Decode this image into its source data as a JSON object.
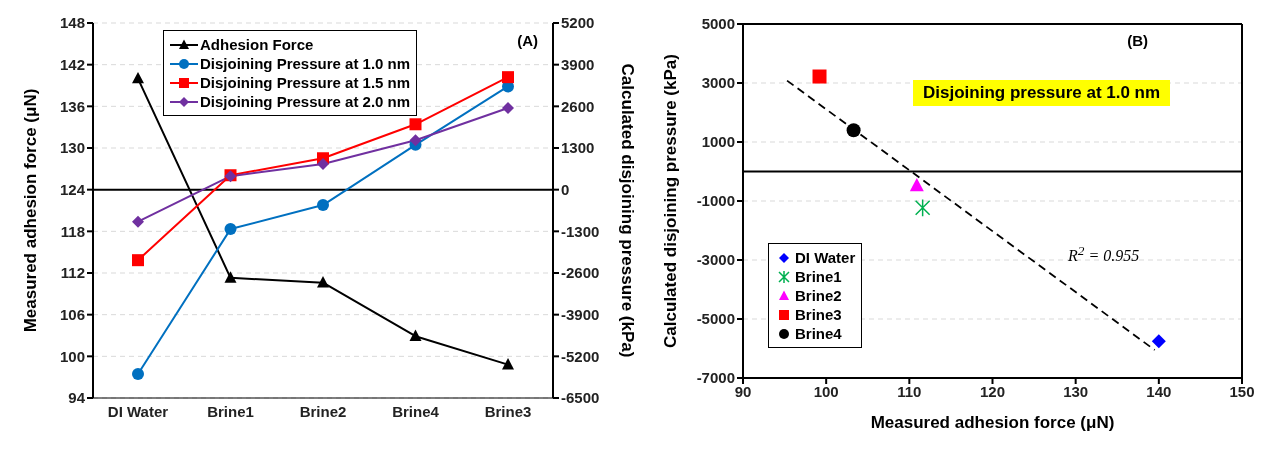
{
  "chart_data": [
    {
      "type": "line",
      "categories": [
        "DI Water",
        "Brine1",
        "Brine2",
        "Brine4",
        "Brine3"
      ],
      "ylabel": "Measured adhesion force (μN)",
      "y2label": "Calculated disjoining pressure (kPa)",
      "ylim": [
        94,
        148
      ],
      "yticks": [
        94,
        100,
        106,
        112,
        118,
        124,
        130,
        136,
        142,
        148
      ],
      "y2lim": [
        -6500,
        5200
      ],
      "y2ticks": [
        -6500,
        -5200,
        -3900,
        -2600,
        -1300,
        0,
        1300,
        2600,
        3900,
        5200
      ],
      "grid": "y",
      "legend": "top",
      "ref_lines": [
        {
          "axis": "y2",
          "value": 0,
          "color": "#000000"
        }
      ],
      "annotations": [
        "(A)"
      ],
      "series": [
        {
          "name": "Adhesion Force",
          "color": "#000000",
          "marker": "triangle",
          "values": [
            140,
            111.3,
            110.6,
            102.9,
            98.8
          ]
        },
        {
          "name": "Disjoining Pressure at 1.0 nm",
          "color": "#0070c0",
          "marker": "circle",
          "axis": "y2",
          "values": [
            -5750,
            -1230,
            -480,
            1400,
            3220
          ]
        },
        {
          "name": "Disjoining Pressure at 1.5 nm",
          "color": "#ff0000",
          "marker": "square",
          "axis": "y2",
          "values": [
            -2200,
            450,
            980,
            2040,
            3510
          ]
        },
        {
          "name": "Disjoining Pressure at 2.0 nm",
          "color": "#7030a0",
          "marker": "diamond",
          "axis": "y2",
          "values": [
            -1000,
            420,
            800,
            1540,
            2550
          ]
        }
      ]
    },
    {
      "type": "scatter",
      "xlabel": "Measured adhesion force (μN)",
      "ylabel": "Calculated disjoining pressure (kPa)",
      "xlim": [
        90,
        150
      ],
      "xticks": [
        90,
        100,
        110,
        120,
        130,
        140,
        150
      ],
      "ylim": [
        -7000,
        5000
      ],
      "yticks": [
        -7000,
        -5000,
        -3000,
        -1000,
        1000,
        3000,
        5000
      ],
      "grid": "y",
      "legend": "bottom left",
      "ref_lines": [
        {
          "axis": "y",
          "value": 0,
          "color": "#000000"
        }
      ],
      "annotations": [
        "(B)",
        "Disjoining pressure at 1.0 nm",
        "R$^{2}$ = 0.955"
      ],
      "series": [
        {
          "name": "DI Water",
          "color": "#0000ff",
          "marker": "diamond",
          "x": [
            140.0
          ],
          "values": [
            -5750
          ]
        },
        {
          "name": "Brine1",
          "color": "#00b050",
          "marker": "cross",
          "x": [
            111.6
          ],
          "values": [
            -1230
          ]
        },
        {
          "name": "Brine2",
          "color": "#ff00ff",
          "marker": "triangle",
          "x": [
            110.9
          ],
          "values": [
            -480
          ]
        },
        {
          "name": "Brine3",
          "color": "#ff0000",
          "marker": "square",
          "x": [
            99.2
          ],
          "values": [
            3220
          ]
        },
        {
          "name": "Brine4",
          "color": "#000000",
          "marker": "circle",
          "x": [
            103.3
          ],
          "values": [
            1400
          ]
        },
        {
          "type": "line",
          "color": "#000000",
          "line_style": "dashed",
          "marker": "none",
          "x": [
            95.3,
            139.5
          ],
          "values": [
            3080,
            -6050
          ]
        }
      ]
    }
  ]
}
